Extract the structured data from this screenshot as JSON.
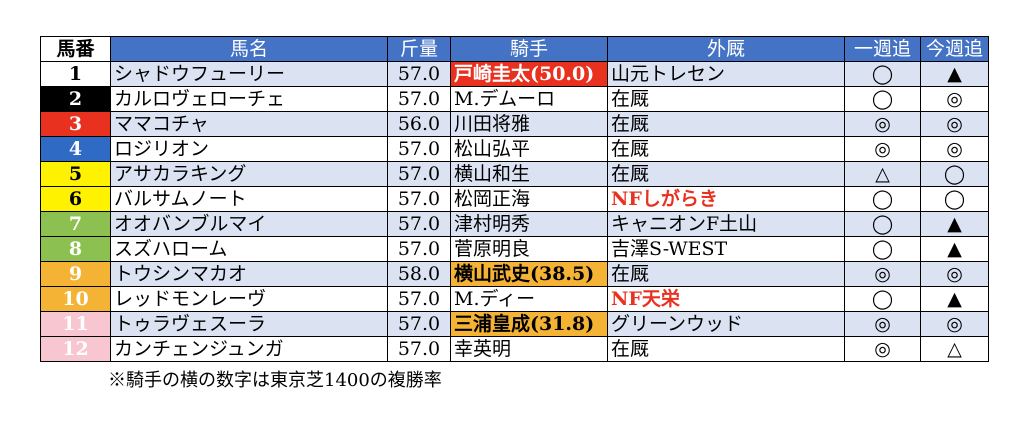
{
  "headers": {
    "no": "馬番",
    "horse": "馬名",
    "weight": "斤量",
    "jockey": "騎手",
    "stable": "外厩",
    "last_week": "一週追",
    "this_week": "今週追"
  },
  "rows": [
    {
      "no": "1",
      "horse": "シャドウフューリー",
      "weight": "57.0",
      "jockey": "戸崎圭太(50.0)",
      "stable": "山元トレセン",
      "last_week": "◯",
      "this_week": "▲"
    },
    {
      "no": "2",
      "horse": "カルロヴェローチェ",
      "weight": "57.0",
      "jockey": "M.デムーロ",
      "stable": "在厩",
      "last_week": "◯",
      "this_week": "◎"
    },
    {
      "no": "3",
      "horse": "ママコチャ",
      "weight": "56.0",
      "jockey": "川田将雅",
      "stable": "在厩",
      "last_week": "◎",
      "this_week": "◎"
    },
    {
      "no": "4",
      "horse": "ロジリオン",
      "weight": "57.0",
      "jockey": "松山弘平",
      "stable": "在厩",
      "last_week": "◎",
      "this_week": "◎"
    },
    {
      "no": "5",
      "horse": "アサカラキング",
      "weight": "57.0",
      "jockey": "横山和生",
      "stable": "在厩",
      "last_week": "△",
      "this_week": "◯"
    },
    {
      "no": "6",
      "horse": "バルサムノート",
      "weight": "57.0",
      "jockey": "松岡正海",
      "stable": "NFしがらき",
      "last_week": "◯",
      "this_week": "◯"
    },
    {
      "no": "7",
      "horse": "オオバンブルマイ",
      "weight": "57.0",
      "jockey": "津村明秀",
      "stable": "キャニオンF土山",
      "last_week": "◯",
      "this_week": "▲"
    },
    {
      "no": "8",
      "horse": "スズハローム",
      "weight": "57.0",
      "jockey": "菅原明良",
      "stable": "吉澤S-WEST",
      "last_week": "◯",
      "this_week": "▲"
    },
    {
      "no": "9",
      "horse": "トウシンマカオ",
      "weight": "58.0",
      "jockey": "横山武史(38.5)",
      "stable": "在厩",
      "last_week": "◎",
      "this_week": "◎"
    },
    {
      "no": "10",
      "horse": "レッドモンレーヴ",
      "weight": "57.0",
      "jockey": "M.ディー",
      "stable": "NF天栄",
      "last_week": "◯",
      "this_week": "▲"
    },
    {
      "no": "11",
      "horse": "トゥラヴェスーラ",
      "weight": "57.0",
      "jockey": "三浦皇成(31.8)",
      "stable": "グリーンウッド",
      "last_week": "◎",
      "this_week": "◎"
    },
    {
      "no": "12",
      "horse": "カンチェンジュンガ",
      "weight": "57.0",
      "jockey": "幸英明",
      "stable": "在厩",
      "last_week": "◎",
      "this_week": "△"
    }
  ],
  "row_styles": [
    {
      "no_bg": "#ffffff",
      "no_fg": "#000000",
      "shade": true,
      "jockey_hl": "red",
      "stable_red": false
    },
    {
      "no_bg": "#000000",
      "no_fg": "#ffffff",
      "shade": false,
      "jockey_hl": "",
      "stable_red": false
    },
    {
      "no_bg": "#e8311f",
      "no_fg": "#ffffff",
      "shade": true,
      "jockey_hl": "",
      "stable_red": false
    },
    {
      "no_bg": "#2f6bc4",
      "no_fg": "#ffffff",
      "shade": false,
      "jockey_hl": "",
      "stable_red": false
    },
    {
      "no_bg": "#fff200",
      "no_fg": "#000000",
      "shade": true,
      "jockey_hl": "",
      "stable_red": false
    },
    {
      "no_bg": "#fff200",
      "no_fg": "#000000",
      "shade": false,
      "jockey_hl": "",
      "stable_red": true
    },
    {
      "no_bg": "#8cc152",
      "no_fg": "#ffffff",
      "shade": true,
      "jockey_hl": "",
      "stable_red": false
    },
    {
      "no_bg": "#8cc152",
      "no_fg": "#ffffff",
      "shade": false,
      "jockey_hl": "",
      "stable_red": false
    },
    {
      "no_bg": "#f5b335",
      "no_fg": "#ffffff",
      "shade": true,
      "jockey_hl": "orange",
      "stable_red": false
    },
    {
      "no_bg": "#f5b335",
      "no_fg": "#ffffff",
      "shade": false,
      "jockey_hl": "",
      "stable_red": true
    },
    {
      "no_bg": "#f7c6d0",
      "no_fg": "#ffffff",
      "shade": true,
      "jockey_hl": "orange",
      "stable_red": false
    },
    {
      "no_bg": "#f7c6d0",
      "no_fg": "#ffffff",
      "shade": false,
      "jockey_hl": "",
      "stable_red": false
    }
  ],
  "note": "※騎手の横の数字は東京芝1400の複勝率",
  "colors": {
    "header_bg": "#4472c4",
    "shade_row": "#dbe3f3",
    "highlight_red": "#e8311f",
    "highlight_orange": "#f5b335"
  }
}
